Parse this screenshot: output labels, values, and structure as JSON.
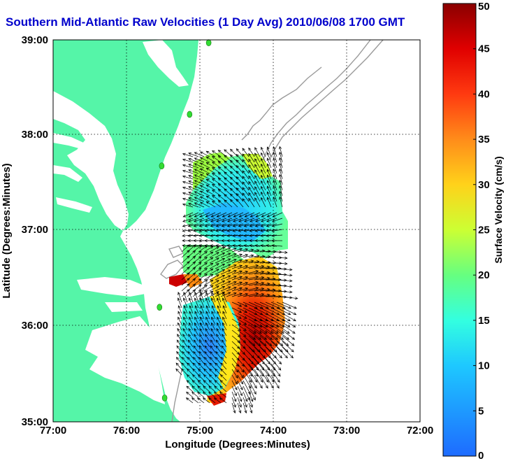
{
  "chart_data": {
    "type": "heatmap",
    "title": "Southern Mid-Atlantic Raw Velocities (1 Day Avg) 2010/06/08 1700 GMT",
    "xlabel": "Longitude (Degrees:Minutes)",
    "ylabel": "Latitude (Degrees:Minutes)",
    "x_tick_labels": [
      "77:00",
      "76:00",
      "75:00",
      "74:00",
      "73:00",
      "72:00"
    ],
    "x_tick_values": [
      -77,
      -76,
      -75,
      -74,
      -73,
      -72
    ],
    "y_tick_labels": [
      "35:00",
      "36:00",
      "37:00",
      "38:00",
      "39:00"
    ],
    "y_tick_values": [
      35,
      36,
      37,
      38,
      39
    ],
    "xlim": [
      -77,
      -72
    ],
    "ylim": [
      35,
      39
    ],
    "grid": true,
    "colorbar": {
      "label": "Surface Velocity (cm/s)",
      "range": [
        0,
        50
      ],
      "tick_labels": [
        "0",
        "5",
        "10",
        "15",
        "20",
        "25",
        "30",
        "35",
        "40",
        "45",
        "50"
      ],
      "tick_values": [
        0,
        5,
        10,
        15,
        20,
        25,
        30,
        35,
        40,
        45,
        50
      ]
    },
    "colors": {
      "land": "#55f5a8",
      "water": "#ffffff",
      "title": "#0000cc",
      "bathymetry": "#9a9a9a",
      "arrows": "#000000",
      "stations": "#33dd33"
    },
    "stations": [
      {
        "lon": -74.88,
        "lat": 38.97
      },
      {
        "lon": -75.14,
        "lat": 38.22
      },
      {
        "lon": -75.52,
        "lat": 37.68
      },
      {
        "lon": -75.55,
        "lat": 36.2
      },
      {
        "lon": -75.48,
        "lat": 35.25
      }
    ],
    "velocity_field": [
      {
        "lon": -75.1,
        "lat": 37.7,
        "speed": 15
      },
      {
        "lon": -74.6,
        "lat": 37.6,
        "speed": 14
      },
      {
        "lon": -74.2,
        "lat": 37.5,
        "speed": 12
      },
      {
        "lon": -75.0,
        "lat": 37.2,
        "speed": 13
      },
      {
        "lon": -74.4,
        "lat": 37.1,
        "speed": 12
      },
      {
        "lon": -75.2,
        "lat": 36.8,
        "speed": 18
      },
      {
        "lon": -74.6,
        "lat": 36.8,
        "speed": 22
      },
      {
        "lon": -74.3,
        "lat": 36.5,
        "speed": 30
      },
      {
        "lon": -74.0,
        "lat": 36.3,
        "speed": 42
      },
      {
        "lon": -75.0,
        "lat": 36.3,
        "speed": 18
      },
      {
        "lon": -74.5,
        "lat": 36.0,
        "speed": 35
      },
      {
        "lon": -74.1,
        "lat": 35.9,
        "speed": 45
      },
      {
        "lon": -75.0,
        "lat": 35.8,
        "speed": 9
      },
      {
        "lon": -74.8,
        "lat": 35.6,
        "speed": 6
      },
      {
        "lon": -74.3,
        "lat": 35.6,
        "speed": 38
      },
      {
        "lon": -74.7,
        "lat": 35.3,
        "speed": 25
      },
      {
        "lon": -74.4,
        "lat": 35.4,
        "speed": 43
      }
    ]
  }
}
